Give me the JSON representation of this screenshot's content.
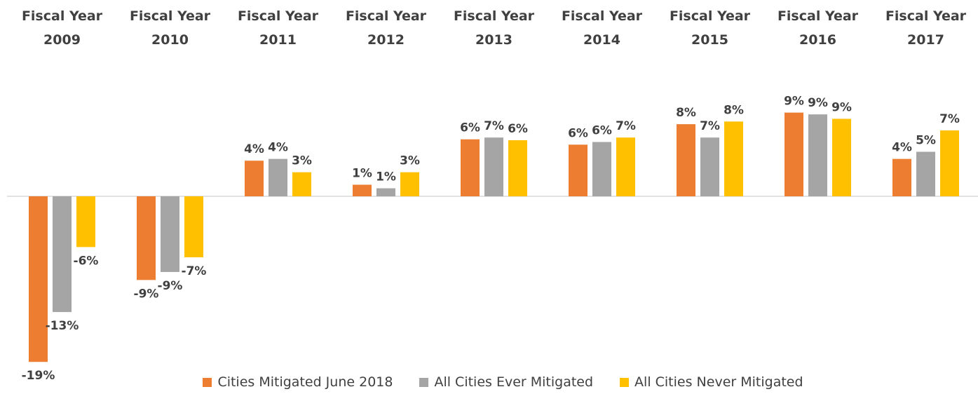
{
  "chart_data": {
    "type": "bar",
    "categories": [
      "Fiscal Year 2009",
      "Fiscal Year 2010",
      "Fiscal Year 2011",
      "Fiscal Year 2012",
      "Fiscal Year 2013",
      "Fiscal Year 2014",
      "Fiscal Year 2015",
      "Fiscal Year 2016",
      "Fiscal Year 2017"
    ],
    "series": [
      {
        "name": "Cities Mitigated June 2018",
        "color": "#ed7d31",
        "values": [
          -18.6,
          -9.4,
          4.0,
          1.3,
          6.4,
          5.8,
          8.1,
          9.4,
          4.2
        ],
        "value_labels": [
          "-19%",
          "-9%",
          "4%",
          "1%",
          "6%",
          "6%",
          "8%",
          "9%",
          "4%"
        ]
      },
      {
        "name": "All Cities Ever Mitigated",
        "color": "#a5a5a5",
        "values": [
          -13.0,
          -8.5,
          4.2,
          0.9,
          6.6,
          6.1,
          6.6,
          9.2,
          5.0
        ],
        "value_labels": [
          "-13%",
          "-9%",
          "4%",
          "1%",
          "7%",
          "6%",
          "7%",
          "9%",
          "5%"
        ]
      },
      {
        "name": "All Cities Never Mitigated",
        "color": "#ffc000",
        "values": [
          -5.7,
          -6.85,
          2.7,
          2.7,
          6.3,
          6.6,
          8.4,
          8.7,
          7.4
        ],
        "value_labels": [
          "-6%",
          "-7%",
          "3%",
          "3%",
          "6%",
          "7%",
          "8%",
          "9%",
          "7%"
        ]
      }
    ],
    "legend": "bottom"
  }
}
